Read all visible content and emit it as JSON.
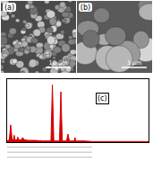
{
  "panels": {
    "a": {
      "label": "(a)",
      "scale_bar": "10 μm"
    },
    "b": {
      "label": "(b)",
      "scale_bar": "3 μm"
    }
  },
  "chart_data": {
    "type": "line",
    "annotations": [
      "(c)"
    ],
    "x": [
      0,
      0.3,
      0.5,
      0.7,
      0.9,
      1.0,
      1.1,
      1.4,
      1.5,
      1.6,
      2.0,
      2.2,
      2.4,
      3,
      4,
      5,
      6.2,
      6.4,
      6.6,
      7.4,
      7.6,
      7.8,
      8.4,
      8.6,
      8.8,
      9.5,
      9.6,
      9.7,
      11,
      12,
      14,
      16,
      18,
      20
    ],
    "values": [
      2,
      4,
      30,
      5,
      4,
      12,
      4,
      4,
      9,
      4,
      4,
      8,
      4,
      3,
      3,
      2,
      2,
      100,
      2,
      2,
      88,
      2,
      2,
      14,
      2,
      2,
      8,
      2,
      2,
      1,
      1,
      1,
      1,
      1
    ],
    "xlim": [
      0,
      20
    ],
    "ylim": [
      0,
      110
    ],
    "tick_labels": false,
    "color": "#d40000"
  }
}
